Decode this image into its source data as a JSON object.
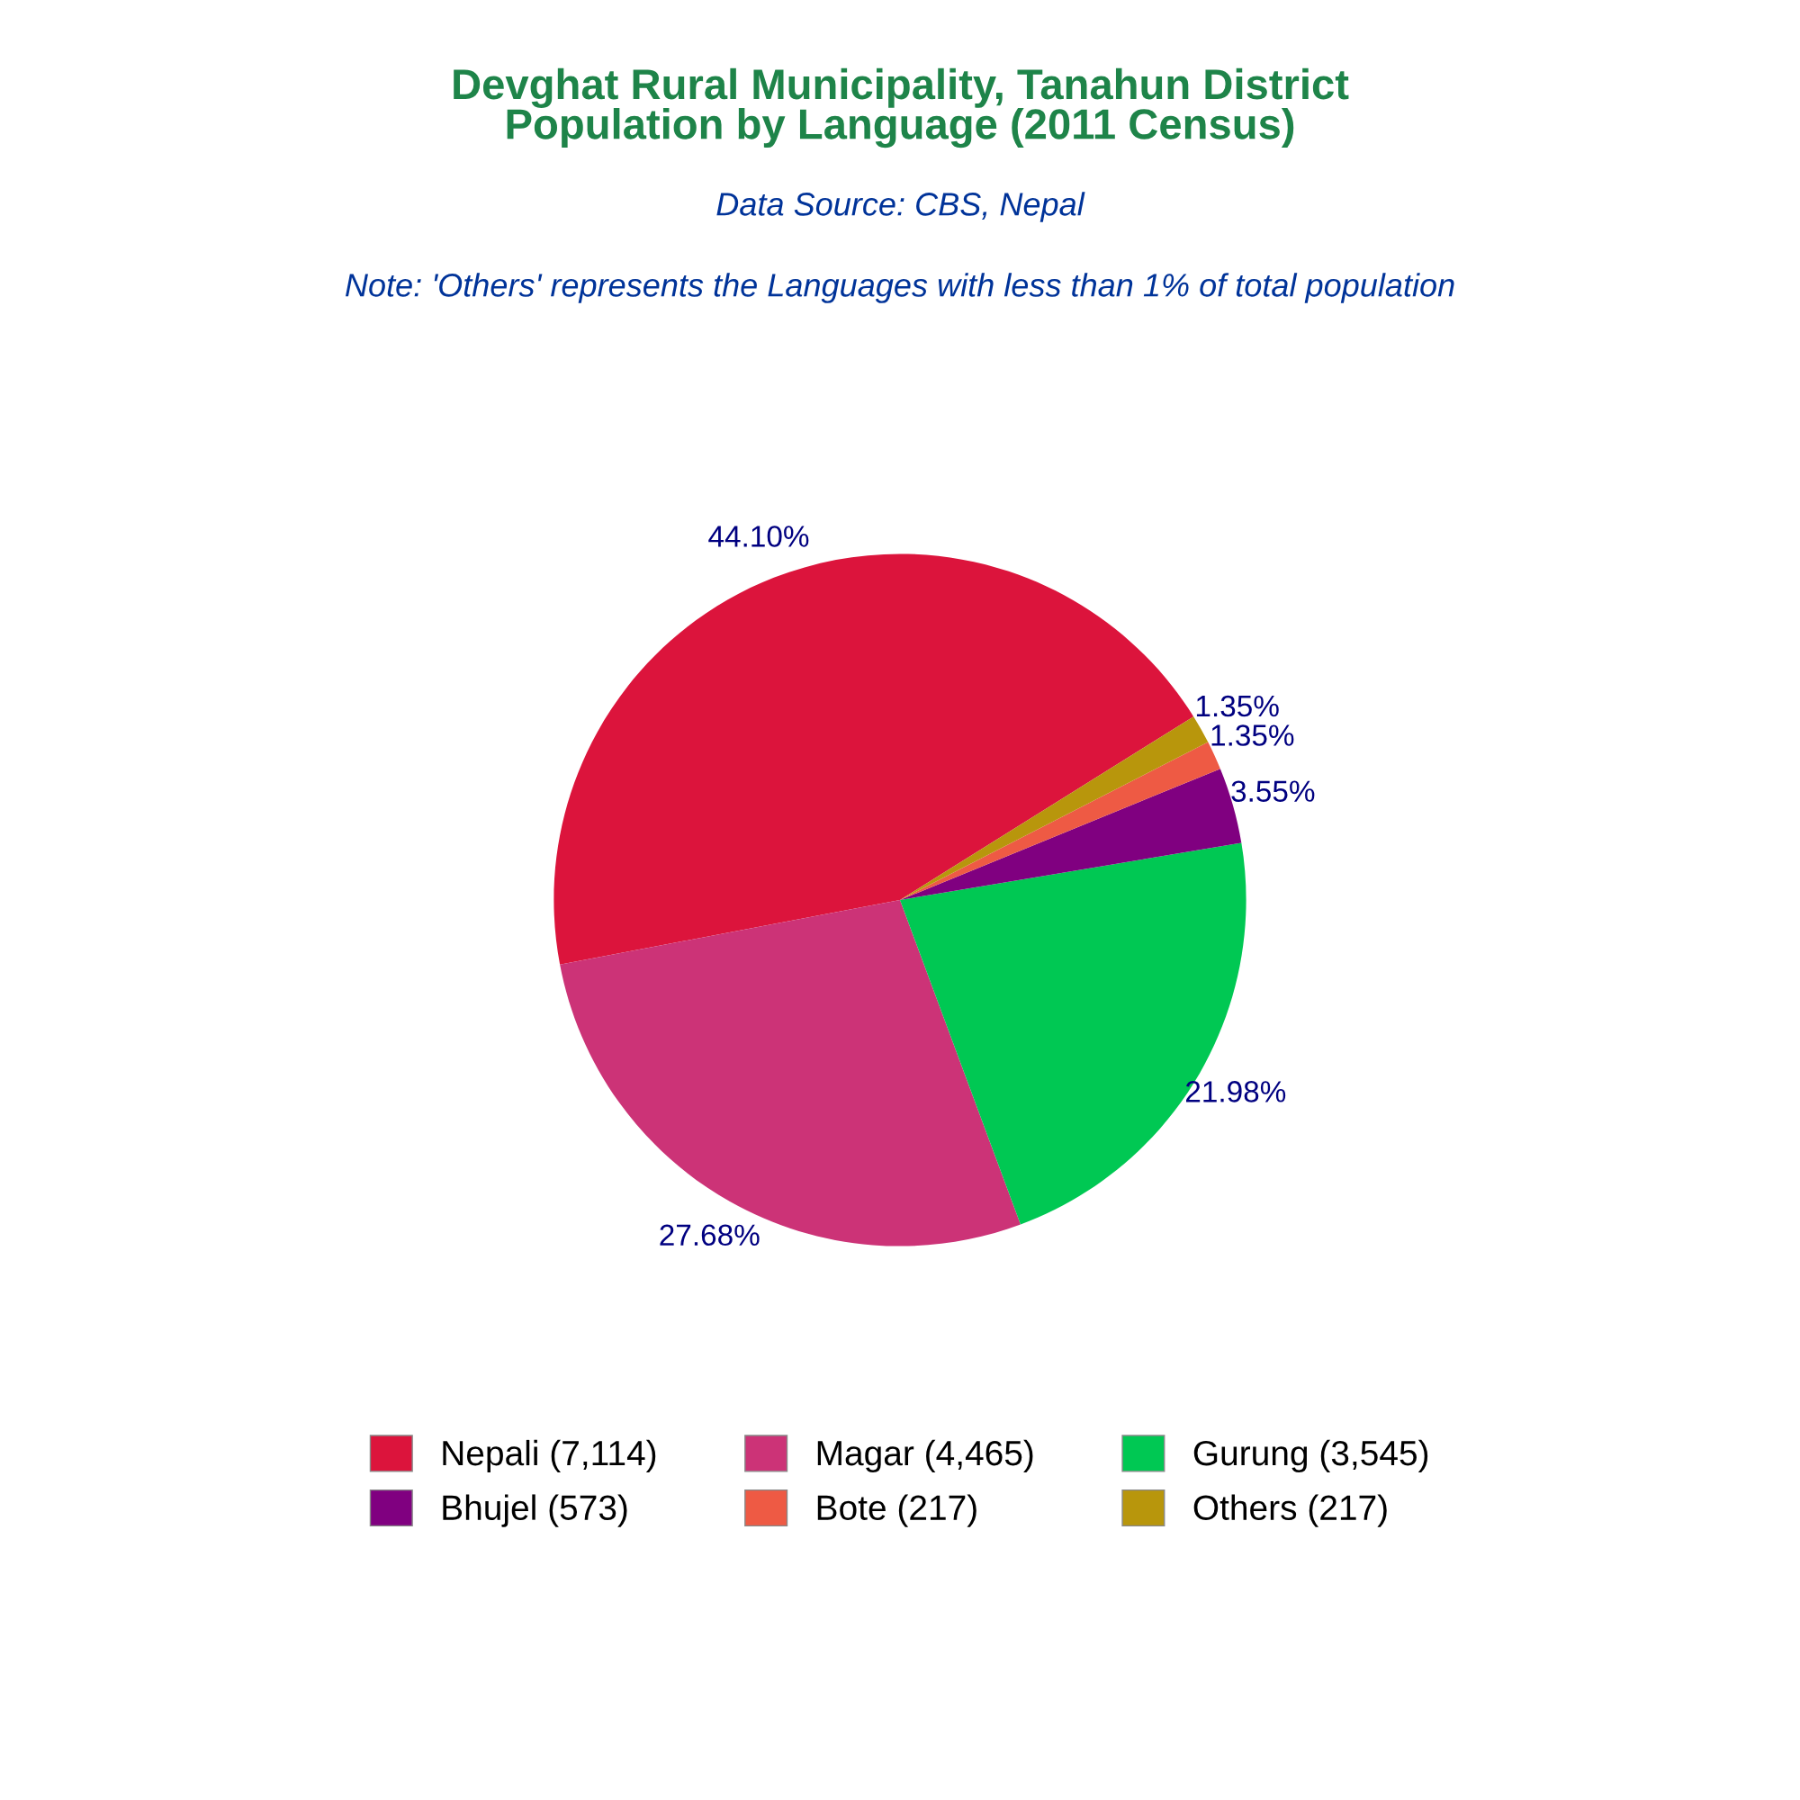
{
  "chart_data": {
    "type": "pie",
    "title": "Devghat Rural Municipality, Tanahun District\nPopulation by Language (2011 Census)",
    "subtitle": "Data Source: CBS, Nepal",
    "annotations": [
      "Note: 'Others' represents the Languages with less than 1% of total population"
    ],
    "categories": [
      "Nepali (7,114)",
      "Magar (4,465)",
      "Gurung (3,545)",
      "Bhujel (573)",
      "Bote (217)",
      "Others (217)"
    ],
    "values": [
      44.1,
      27.68,
      21.98,
      3.55,
      1.35,
      1.35
    ],
    "value_labels": [
      "44.10%",
      "27.68%",
      "21.98%",
      "3.55%",
      "1.35%",
      "1.35%"
    ],
    "colors": [
      "#dc143c",
      "#cc3377",
      "#00c853",
      "#800080",
      "#ee5a44",
      "#b8960c"
    ],
    "legend": "bottom"
  }
}
